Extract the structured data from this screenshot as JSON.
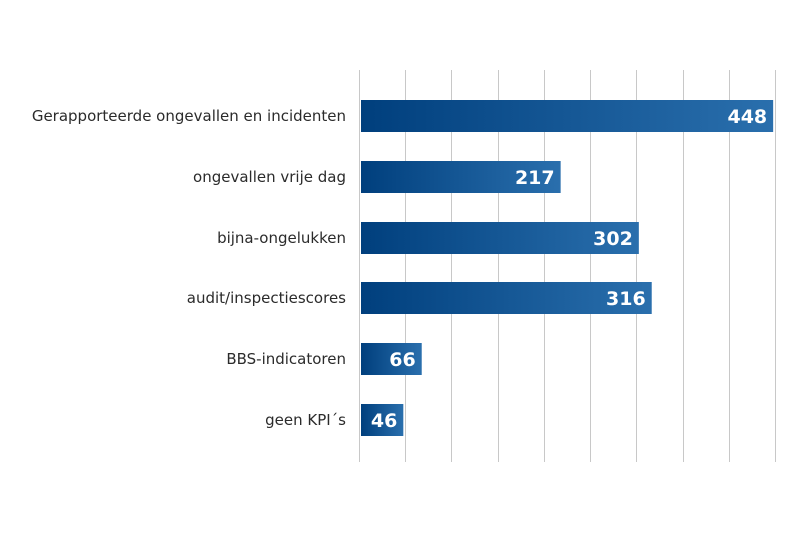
{
  "chart_data": {
    "type": "bar",
    "orientation": "horizontal",
    "title": "",
    "xlabel": "",
    "ylabel": "",
    "categories": [
      "Gerapporteerde ongevallen en incidenten",
      "ongevallen vrije dag",
      "bijna-ongelukken",
      "audit/inspectiescores",
      "BBS-indicatoren",
      "geen KPI´s"
    ],
    "values": [
      448,
      217,
      302,
      316,
      66,
      46
    ],
    "value_labels": [
      "448",
      "217",
      "302",
      "316",
      "66",
      "46"
    ],
    "xlim": [
      0,
      450
    ],
    "grid": true,
    "grid_step": 50,
    "bar_color_start": "#003f7d",
    "bar_color_end": "#2a6fad",
    "value_label_color": "#ffffff",
    "grid_color": "#c8c8c8"
  }
}
